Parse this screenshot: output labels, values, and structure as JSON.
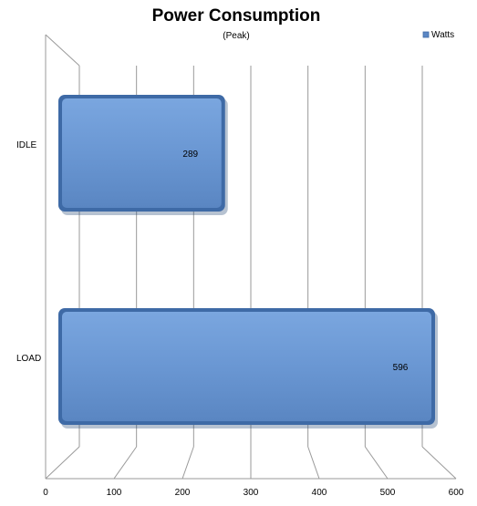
{
  "chart_data": {
    "type": "bar",
    "orientation": "horizontal",
    "style": "3d-bevel",
    "title": "Power Consumption",
    "subtitle": "(Peak)",
    "categories": [
      "IDLE",
      "LOAD"
    ],
    "series": [
      {
        "name": "Watts",
        "values": [
          289,
          596
        ]
      }
    ],
    "xlim": [
      0,
      600
    ],
    "x_ticks": [
      0,
      100,
      200,
      300,
      400,
      500,
      600
    ],
    "grid": true,
    "legend_position": "top-right",
    "colors": {
      "bar": "#6a97d3",
      "bar_edge": "#3e6aa6",
      "grid": "#9a9a9a"
    }
  }
}
